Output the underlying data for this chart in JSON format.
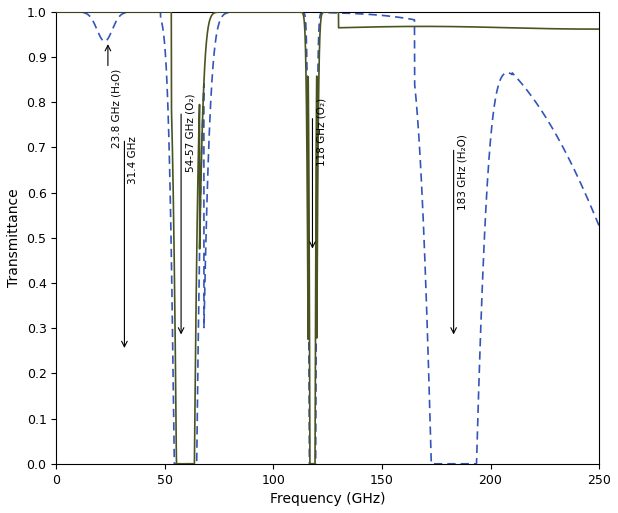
{
  "xlabel": "Frequency (GHz)",
  "ylabel": "Transmittance",
  "xlim": [
    0,
    250
  ],
  "ylim": [
    0,
    1.0
  ],
  "xticks": [
    0,
    50,
    100,
    150,
    200,
    250
  ],
  "yticks": [
    0,
    0.1,
    0.2,
    0.3,
    0.4,
    0.5,
    0.6,
    0.7,
    0.8,
    0.9,
    1.0
  ],
  "solid_color": "#4a5420",
  "dashed_color": "#3355bb",
  "figsize": [
    6.18,
    5.13
  ],
  "dpi": 100
}
